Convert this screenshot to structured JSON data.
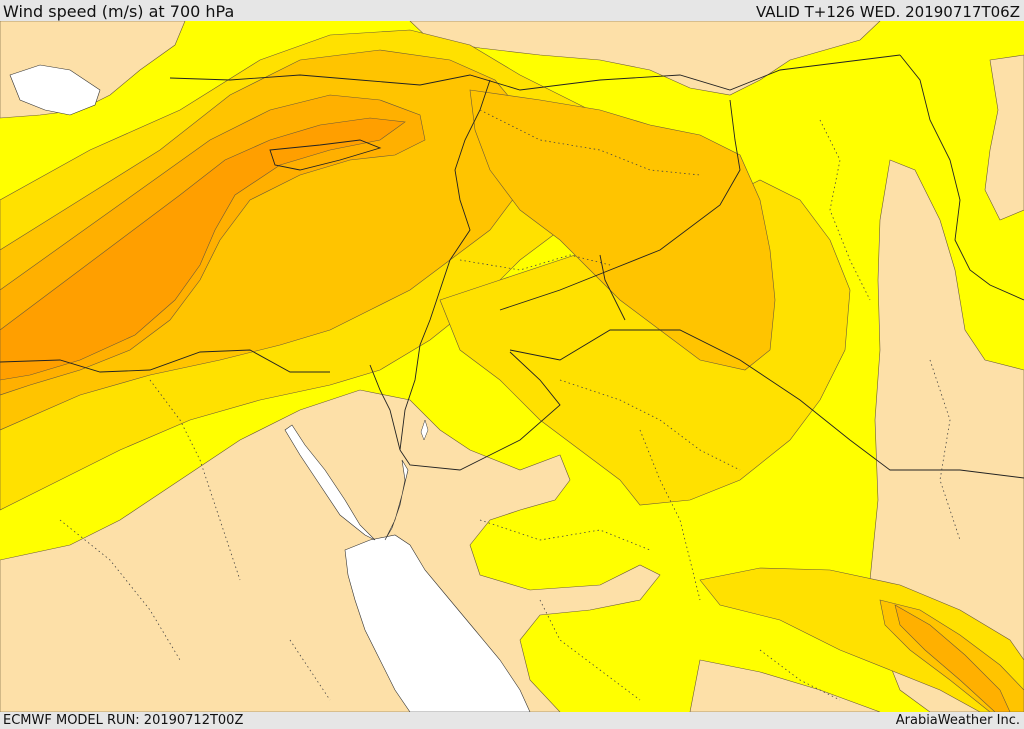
{
  "header": {
    "title": "Wind speed (m/s) at 700 hPa",
    "valid": "VALID T+126 WED. 20190717T06Z"
  },
  "footer": {
    "model_run": "ECMWF MODEL RUN: 20190712T00Z",
    "credit": "ArabiaWeather Inc."
  },
  "colors": {
    "band_low": "#fde0a8",
    "band_mid": "#ffff00",
    "band_high": "#ffe100",
    "band_higher": "#ffc400",
    "band_top": "#ffb000",
    "band_peak": "#ff9f00",
    "water": "#ffffff"
  }
}
